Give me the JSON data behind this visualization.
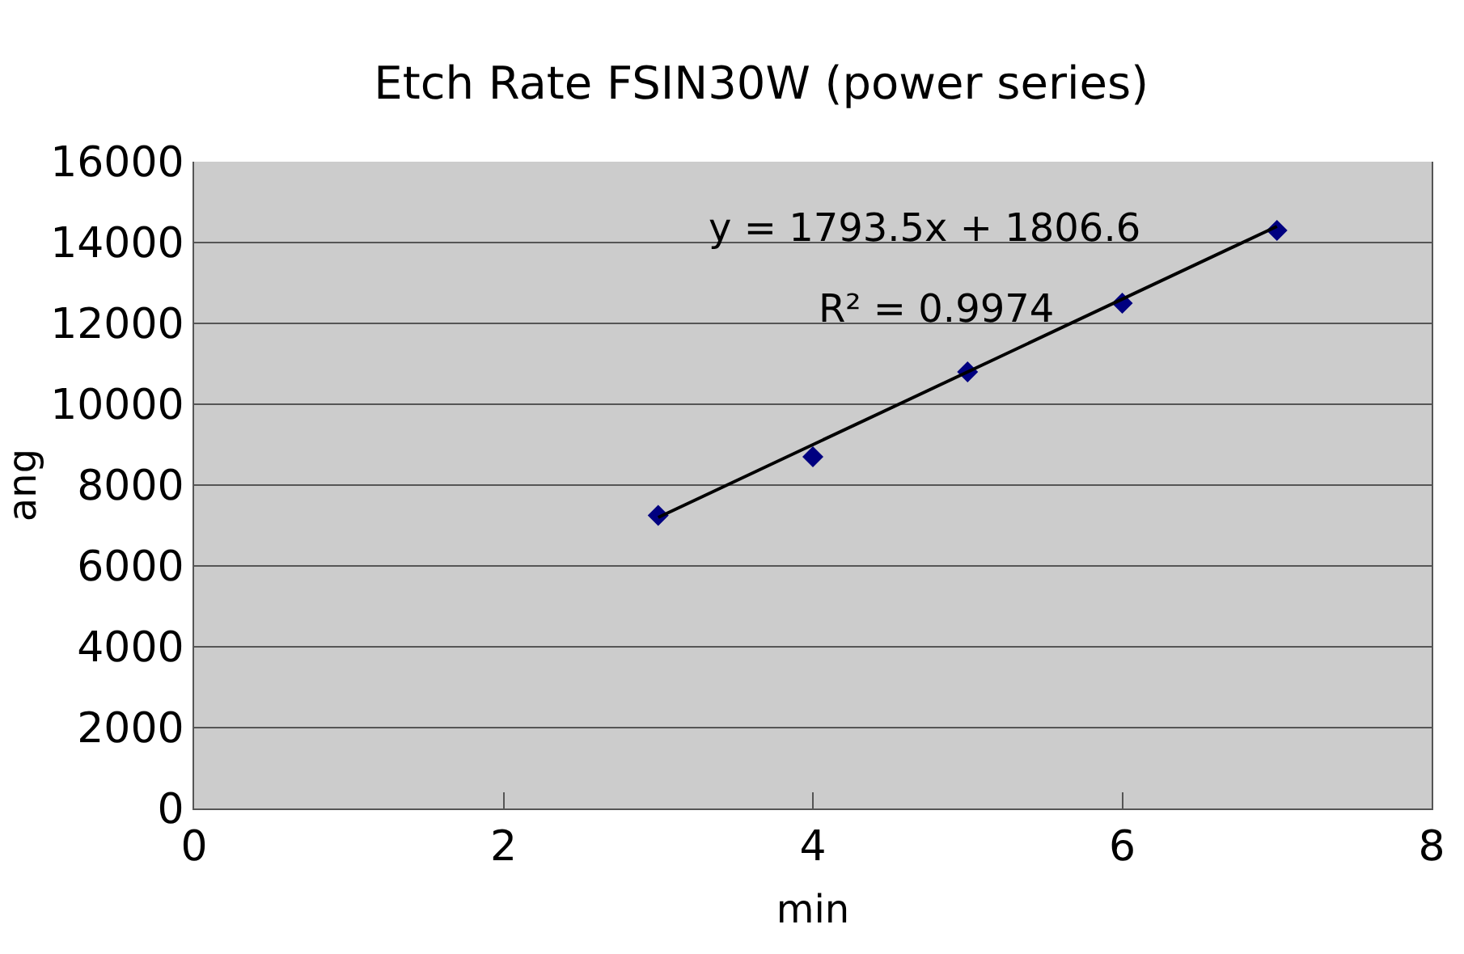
{
  "chart_data": {
    "type": "scatter",
    "title": "Etch Rate FSIN30W (power series)",
    "xlabel": "min",
    "ylabel": "ang",
    "xlim": [
      0,
      8
    ],
    "xticks": [
      0,
      2,
      4,
      6,
      8
    ],
    "ylim": [
      0,
      16000
    ],
    "yticks": [
      0,
      2000,
      4000,
      6000,
      8000,
      10000,
      12000,
      14000,
      16000
    ],
    "grid": "y",
    "marker": "diamond",
    "x": [
      3,
      4,
      5,
      6,
      7
    ],
    "series": [
      {
        "color": "#000080",
        "values": [
          7250,
          8700,
          10800,
          12500,
          14300
        ]
      },
      {
        "type": "line",
        "color": "#000000",
        "x": [
          3,
          7
        ],
        "values": [
          7200,
          14400
        ],
        "marker": "none",
        "line_style": "solid"
      }
    ],
    "annotations": [
      "y = 1793.5x + 1806.6",
      "R² = 0.9974"
    ]
  }
}
